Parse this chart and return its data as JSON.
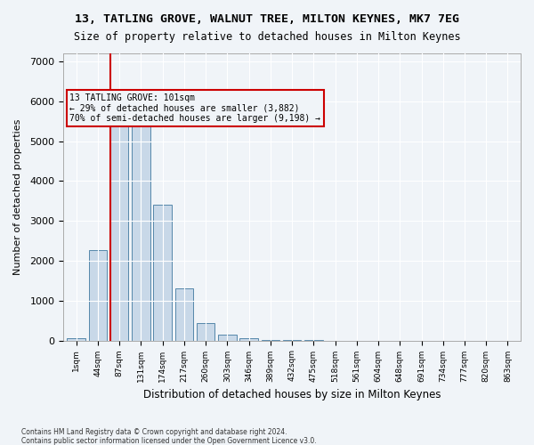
{
  "title_line1": "13, TATLING GROVE, WALNUT TREE, MILTON KEYNES, MK7 7EG",
  "title_line2": "Size of property relative to detached houses in Milton Keynes",
  "xlabel": "Distribution of detached houses by size in Milton Keynes",
  "ylabel": "Number of detached properties",
  "footnote1": "Contains HM Land Registry data © Crown copyright and database right 2024.",
  "footnote2": "Contains public sector information licensed under the Open Government Licence v3.0.",
  "bar_labels": [
    "1sqm",
    "44sqm",
    "87sqm",
    "131sqm",
    "174sqm",
    "217sqm",
    "260sqm",
    "303sqm",
    "346sqm",
    "389sqm",
    "432sqm",
    "475sqm",
    "518sqm",
    "561sqm",
    "604sqm",
    "648sqm",
    "691sqm",
    "734sqm",
    "777sqm",
    "820sqm",
    "863sqm"
  ],
  "bar_values": [
    60,
    2270,
    5450,
    5450,
    3400,
    1300,
    430,
    150,
    50,
    10,
    5,
    2,
    1,
    0,
    0,
    0,
    0,
    0,
    0,
    0,
    0
  ],
  "bar_color": "#c8d8e8",
  "bar_edge_color": "#5588aa",
  "ylim": [
    0,
    7200
  ],
  "yticks": [
    0,
    1000,
    2000,
    3000,
    4000,
    5000,
    6000,
    7000
  ],
  "property_line_x": 2,
  "property_sqm": 101,
  "vline_color": "#cc0000",
  "annotation_text_line1": "13 TATLING GROVE: 101sqm",
  "annotation_text_line2": "← 29% of detached houses are smaller (3,882)",
  "annotation_text_line3": "70% of semi-detached houses are larger (9,198) →",
  "annotation_box_color": "#cc0000",
  "background_color": "#f0f4f8",
  "grid_color": "#ffffff"
}
